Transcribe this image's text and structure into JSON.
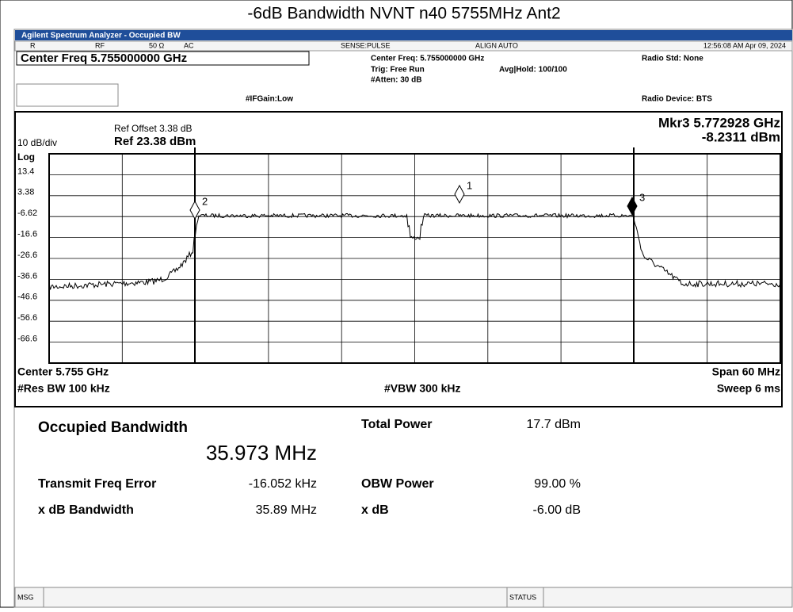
{
  "title": "-6dB Bandwidth NVNT n40 5755MHz Ant2",
  "window": {
    "title": "Agilent Spectrum Analyzer - Occupied BW"
  },
  "status": {
    "r": "R",
    "rf": "RF",
    "ohm": "50 Ω",
    "ac": "AC",
    "sense": "SENSE:PULSE",
    "align": "ALIGN AUTO",
    "time": "12:56:08 AM Apr 09, 2024"
  },
  "settings": {
    "center": "Center Freq 5.755000000 GHz",
    "center_small": "Center Freq: 5.755000000 GHz",
    "trig": "Trig: Free Run",
    "avg": "Avg|Hold: 100/100",
    "atten": "#Atten: 30 dB",
    "ifgain": "#IFGain:Low",
    "radio_std": "Radio Std: None",
    "radio_dev": "Radio Device: BTS"
  },
  "plot": {
    "ref_offset": "Ref Offset 3.38 dB",
    "ref": "Ref 23.38 dBm",
    "scale": "10 dB/div",
    "log": "Log",
    "marker": "Mkr3  5.772928 GHz",
    "marker_value": "-8.2311 dBm",
    "y_labels": [
      "13.4",
      "3.38",
      "-6.62",
      "-16.6",
      "-26.6",
      "-36.6",
      "-46.6",
      "-56.6",
      "-66.6"
    ],
    "markers": [
      "1",
      "2",
      "3"
    ],
    "center": "Center  5.755 GHz",
    "res_bw": "#Res BW  100 kHz",
    "vbw": "#VBW  300 kHz",
    "span": "Span 60 MHz",
    "sweep": "Sweep  6 ms"
  },
  "results": {
    "obw_label": "Occupied Bandwidth",
    "obw": "35.973 MHz",
    "tp_label": "Total Power",
    "tp": "17.7 dBm",
    "tfe_label": "Transmit Freq Error",
    "tfe": "-16.052 kHz",
    "obwp_label": "OBW Power",
    "obwp": "99.00 %",
    "xdbbw_label": "x dB Bandwidth",
    "xdbbw": "35.89 MHz",
    "xdb_label": "x dB",
    "xdb": "-6.00 dB"
  },
  "footer": {
    "msg": "MSG",
    "status": "STATUS"
  }
}
